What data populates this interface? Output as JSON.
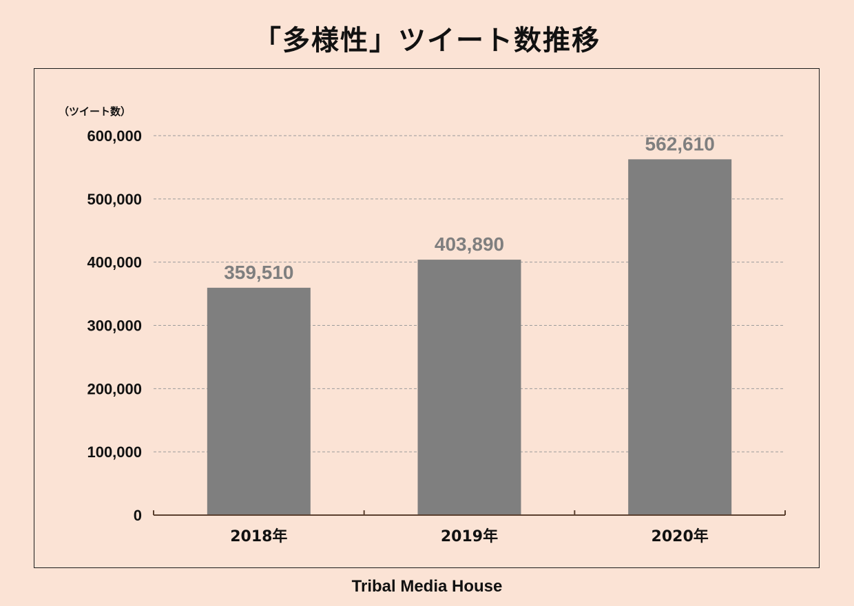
{
  "title": "「多様性」ツイート数推移",
  "footer": "Tribal Media House",
  "colors": {
    "background": "#fbe3d5",
    "bar": "#7f7f7f",
    "value_label": "#7f7f7f",
    "text": "#111111",
    "grid": "#9a9a9a"
  },
  "chart_data": {
    "type": "bar",
    "title": "「多様性」ツイート数推移",
    "ylabel": "（ツイート数）",
    "xlabel": "",
    "categories": [
      "2018年",
      "2019年",
      "2020年"
    ],
    "values": [
      359510,
      403890,
      562610
    ],
    "value_labels": [
      "359,510",
      "403,890",
      "562,610"
    ],
    "ylim": [
      0,
      600000
    ],
    "yticks": [
      0,
      100000,
      200000,
      300000,
      400000,
      500000,
      600000
    ],
    "ytick_labels": [
      "0",
      "100,000",
      "200,000",
      "300,000",
      "400,000",
      "500,000",
      "600,000"
    ],
    "grid": true,
    "grid_style": "dashed",
    "legend": "none"
  }
}
